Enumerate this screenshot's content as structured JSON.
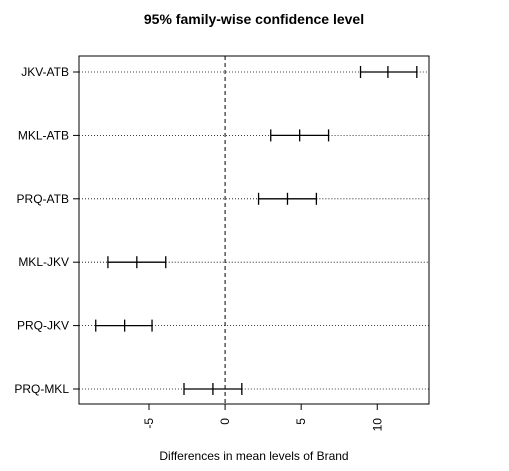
{
  "chart_data": {
    "type": "interval",
    "title": "95% family-wise confidence level",
    "xlabel": "Differences in mean levels of Brand",
    "ylabel": "",
    "xlim": [
      -9.6,
      13.4
    ],
    "x_ticks": [
      -5,
      0,
      5,
      10
    ],
    "x_tick_labels": [
      "-5",
      "0",
      "5",
      "10"
    ],
    "grid": false,
    "comparisons": [
      {
        "label": "JKV-ATB",
        "lwr": 8.9,
        "diff": 10.7,
        "upr": 12.6
      },
      {
        "label": "MKL-ATB",
        "lwr": 3.0,
        "diff": 4.9,
        "upr": 6.8
      },
      {
        "label": "PRQ-ATB",
        "lwr": 2.2,
        "diff": 4.1,
        "upr": 6.0
      },
      {
        "label": "MKL-JKV",
        "lwr": -7.7,
        "diff": -5.8,
        "upr": -3.9
      },
      {
        "label": "PRQ-JKV",
        "lwr": -8.5,
        "diff": -6.6,
        "upr": -4.8
      },
      {
        "label": "PRQ-MKL",
        "lwr": -2.7,
        "diff": -0.8,
        "upr": 1.1
      }
    ]
  }
}
